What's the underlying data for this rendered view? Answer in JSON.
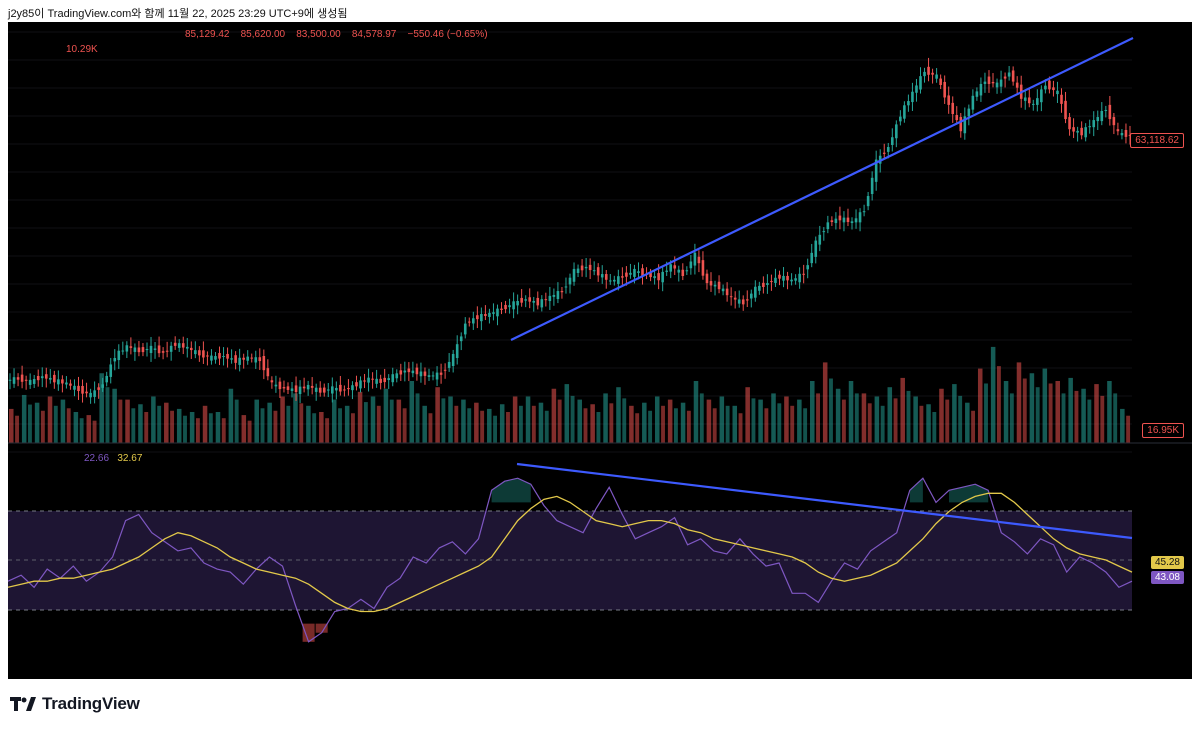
{
  "header": {
    "caption": "j2y85이 TradingView.com와 함께 11월 22, 2025 23:29 UTC+9에 생성됨"
  },
  "footer": {
    "brand": "TradingView"
  },
  "colors": {
    "up": "#26a69a",
    "down": "#ef5350",
    "trendline": "#3d5afe",
    "rsi": "#7e57c2",
    "rsi_ma": "#e2c84a",
    "band": "#1e1533"
  },
  "legend": {
    "ohlc": [
      "85,129.42",
      "85,620.00",
      "83,500.00",
      "84,578.97",
      "−550.46 (−0.65%)"
    ],
    "volume": "10.29K",
    "rsi_value": "22.66",
    "rsi_ma_value": "32.67"
  },
  "chart_data": [
    {
      "type": "candlestick",
      "last_price_label": "63,118.62",
      "points": [
        [
          0,
          33.0
        ],
        [
          2,
          33.2
        ],
        [
          4,
          32.8
        ],
        [
          6,
          33.5
        ],
        [
          8,
          33.0
        ],
        [
          10,
          32.6
        ],
        [
          12,
          31.8
        ],
        [
          14,
          31.2
        ],
        [
          16,
          32.5
        ],
        [
          18,
          36.0
        ],
        [
          20,
          37.2
        ],
        [
          22,
          36.6
        ],
        [
          24,
          37.0
        ],
        [
          26,
          36.4
        ],
        [
          28,
          37.5
        ],
        [
          30,
          37.0
        ],
        [
          32,
          36.2
        ],
        [
          34,
          35.8
        ],
        [
          36,
          36.0
        ],
        [
          38,
          35.4
        ],
        [
          40,
          35.8
        ],
        [
          42,
          35.5
        ],
        [
          44,
          32.5
        ],
        [
          46,
          32.0
        ],
        [
          48,
          31.8
        ],
        [
          50,
          32.3
        ],
        [
          52,
          31.6
        ],
        [
          54,
          32.0
        ],
        [
          56,
          31.8
        ],
        [
          58,
          32.5
        ],
        [
          60,
          33.2
        ],
        [
          62,
          32.8
        ],
        [
          64,
          33.5
        ],
        [
          66,
          34.2
        ],
        [
          68,
          34.0
        ],
        [
          70,
          33.5
        ],
        [
          72,
          33.8
        ],
        [
          74,
          36.0
        ],
        [
          76,
          40.0
        ],
        [
          78,
          40.8
        ],
        [
          80,
          41.2
        ],
        [
          82,
          41.8
        ],
        [
          84,
          42.5
        ],
        [
          86,
          43.0
        ],
        [
          88,
          42.5
        ],
        [
          90,
          43.3
        ],
        [
          92,
          44.0
        ],
        [
          94,
          46.5
        ],
        [
          96,
          47.0
        ],
        [
          98,
          46.2
        ],
        [
          100,
          45.2
        ],
        [
          102,
          45.8
        ],
        [
          104,
          46.5
        ],
        [
          106,
          46.0
        ],
        [
          108,
          45.6
        ],
        [
          110,
          47.2
        ],
        [
          112,
          46.0
        ],
        [
          114,
          48.5
        ],
        [
          116,
          45.0
        ],
        [
          118,
          44.5
        ],
        [
          120,
          43.2
        ],
        [
          122,
          42.5
        ],
        [
          124,
          44.3
        ],
        [
          126,
          45.0
        ],
        [
          128,
          45.8
        ],
        [
          130,
          45.3
        ],
        [
          132,
          46.2
        ],
        [
          134,
          50.0
        ],
        [
          136,
          52.5
        ],
        [
          138,
          53.0
        ],
        [
          140,
          52.5
        ],
        [
          142,
          54.0
        ],
        [
          144,
          60.0
        ],
        [
          146,
          61.8
        ],
        [
          148,
          65.8
        ],
        [
          150,
          68.5
        ],
        [
          152,
          71.2
        ],
        [
          154,
          70.5
        ],
        [
          156,
          67.0
        ],
        [
          158,
          64.0
        ],
        [
          160,
          68.0
        ],
        [
          162,
          70.0
        ],
        [
          164,
          69.5
        ],
        [
          166,
          71.0
        ],
        [
          168,
          68.0
        ],
        [
          170,
          67.0
        ],
        [
          172,
          69.5
        ],
        [
          174,
          68.5
        ],
        [
          176,
          64.0
        ],
        [
          178,
          63.5
        ],
        [
          180,
          65.0
        ],
        [
          182,
          66.5
        ],
        [
          184,
          63.5
        ],
        [
          186,
          63.2
        ]
      ]
    },
    {
      "type": "bar",
      "name": "volume",
      "last_label": "16.95K",
      "values": [
        22,
        31,
        26,
        30,
        28,
        20,
        18,
        45,
        35,
        28,
        25,
        30,
        26,
        22,
        20,
        24,
        20,
        35,
        18,
        28,
        26,
        30,
        32,
        24,
        20,
        28,
        24,
        33,
        30,
        35,
        28,
        40,
        24,
        36,
        30,
        28,
        26,
        22,
        25,
        30,
        30,
        26,
        35,
        38,
        28,
        25,
        32,
        36,
        24,
        26,
        30,
        28,
        26,
        40,
        28,
        30,
        24,
        36,
        28,
        32,
        30,
        28,
        40,
        52,
        35,
        40,
        32,
        30,
        36,
        42,
        30,
        25,
        35,
        38,
        26,
        48,
        62,
        40,
        52,
        45,
        48,
        40,
        42,
        35,
        38,
        40,
        22
      ]
    },
    {
      "type": "line",
      "name": "RSI",
      "y_ticks": [
        "80.00",
        "70.00",
        "60.00",
        "50.00",
        "40.00",
        "30.00",
        "20.00"
      ],
      "last_labels": [
        "45.28",
        "43.08"
      ],
      "ylim": [
        18,
        84
      ],
      "values": [
        44,
        46,
        42,
        48,
        45,
        49,
        44,
        47,
        52,
        64,
        66,
        60,
        57,
        54,
        55,
        50,
        48,
        47,
        43,
        48,
        52,
        49,
        36,
        24,
        27,
        34,
        35,
        38,
        35,
        42,
        45,
        52,
        50,
        55,
        57,
        53,
        58,
        74,
        77,
        78,
        76,
        69,
        64,
        62,
        60,
        68,
        75,
        66,
        58,
        60,
        62,
        65,
        56,
        58,
        54,
        53,
        58,
        53,
        49,
        50,
        40,
        40,
        37,
        44,
        50,
        48,
        54,
        57,
        60,
        74,
        78,
        70,
        74,
        75,
        76,
        74,
        60,
        57,
        53,
        58,
        56,
        47,
        52,
        50,
        47,
        42,
        44
      ]
    },
    {
      "type": "line",
      "name": "RSI MA",
      "values": [
        42,
        43,
        44,
        44,
        45,
        45,
        46,
        47,
        48,
        50,
        52,
        55,
        58,
        60,
        59,
        57,
        55,
        52,
        50,
        48,
        47,
        46,
        45,
        43,
        40,
        37,
        35,
        34,
        34,
        35,
        37,
        39,
        41,
        43,
        45,
        47,
        49,
        52,
        58,
        64,
        68,
        71,
        72,
        70,
        67,
        64,
        63,
        62,
        63,
        64,
        64,
        63,
        61,
        60,
        58,
        57,
        56,
        55,
        54,
        53,
        52,
        50,
        47,
        45,
        44,
        45,
        46,
        48,
        50,
        54,
        58,
        63,
        67,
        70,
        72,
        73,
        73,
        70,
        66,
        62,
        58,
        55,
        53,
        52,
        51,
        49,
        47
      ]
    }
  ]
}
